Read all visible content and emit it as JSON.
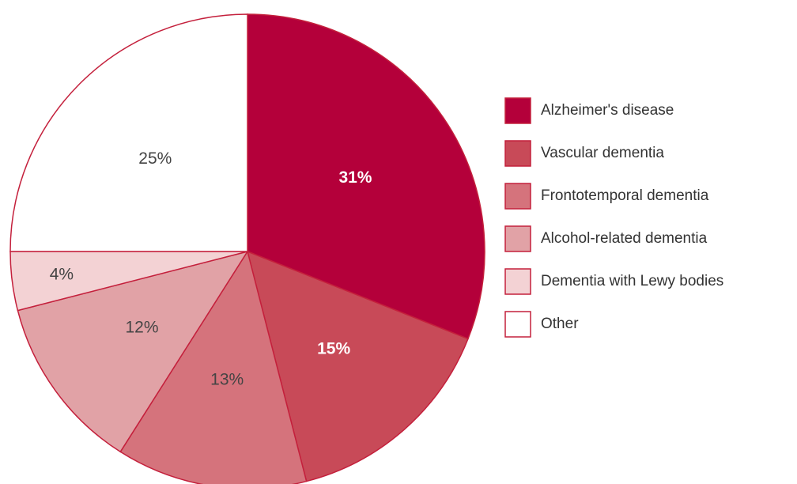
{
  "chart_data": {
    "type": "pie",
    "categories": [
      "Alzheimer's disease",
      "Vascular dementia",
      "Frontotemporal dementia",
      "Alcohol-related dementia",
      "Dementia with Lewy bodies",
      "Other"
    ],
    "values": [
      31,
      15,
      13,
      12,
      4,
      25
    ],
    "value_labels": [
      "31%",
      "15%",
      "13%",
      "12%",
      "4%",
      "25%"
    ],
    "colors": [
      "#b4003a",
      "#c84a58",
      "#d5737c",
      "#e1a2a6",
      "#f3d2d4",
      "#ffffff"
    ],
    "edge_color": "#c4203c",
    "legend": "right"
  }
}
